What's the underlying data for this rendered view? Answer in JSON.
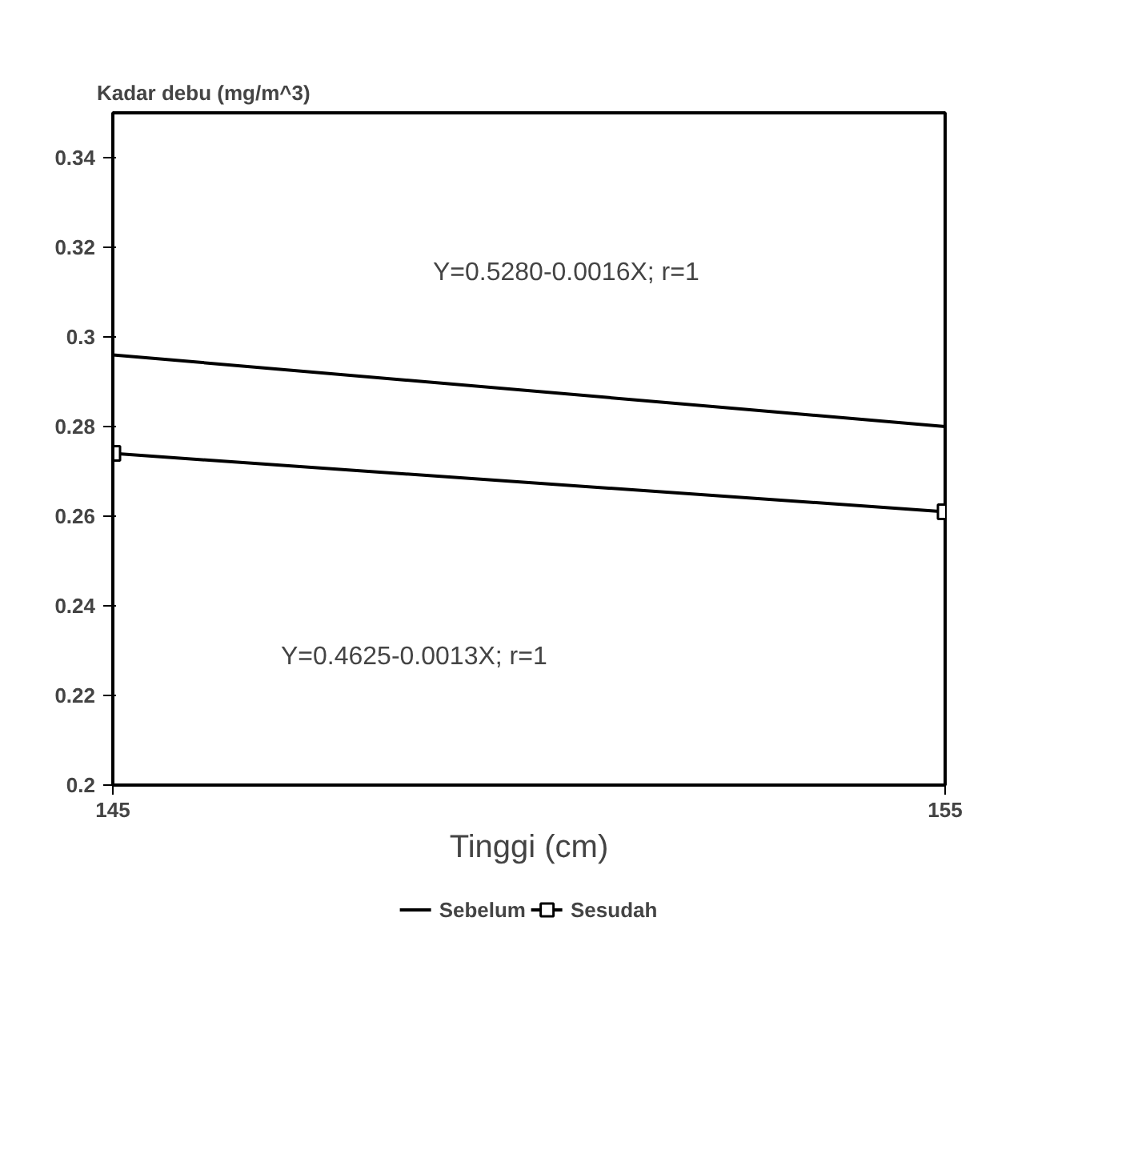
{
  "chart_data": {
    "type": "line",
    "ylabel": "Kadar debu (mg/m^3)",
    "xlabel": "Tinggi (cm)",
    "x": [
      145,
      155
    ],
    "series": [
      {
        "name": "Sebelum",
        "color": "#000000",
        "values": [
          0.296,
          0.28
        ],
        "marker": "none"
      },
      {
        "name": "Sesudah",
        "color": "#000000",
        "values": [
          0.274,
          0.261
        ],
        "marker": "square"
      }
    ],
    "xlim": [
      145,
      155
    ],
    "xticks": [
      145,
      155
    ],
    "ylim": [
      0.2,
      0.35
    ],
    "yticks": [
      0.2,
      0.22,
      0.24,
      0.26,
      0.28,
      {
        "value": 0.3,
        "label": "0.3"
      },
      0.32,
      0.34
    ],
    "annotations": [
      "Y=0.5280-0.0016X; r=1",
      "Y=0.4625-0.0013X; r=1"
    ],
    "legend": "bottom",
    "grid": false,
    "line_style": "solid"
  }
}
